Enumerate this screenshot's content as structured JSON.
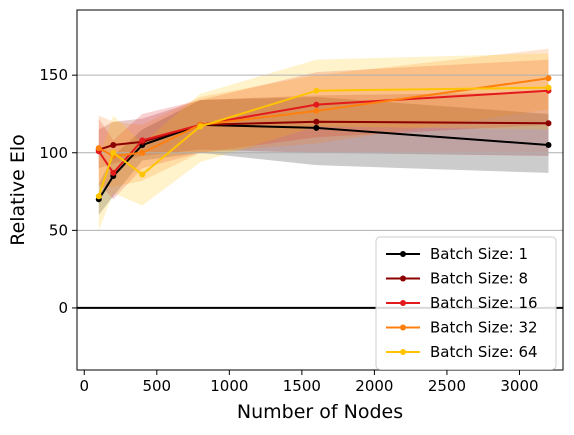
{
  "chart_data": {
    "type": "line",
    "xlabel": "Number of Nodes",
    "ylabel": "Relative Elo",
    "xlim": [
      -50,
      3300
    ],
    "ylim": [
      -40,
      192
    ],
    "xticks": [
      0,
      500,
      1000,
      1500,
      2000,
      2500,
      3000
    ],
    "yticks": [
      0,
      50,
      100,
      150
    ],
    "grid": "horizontal",
    "reference_line_y": 0,
    "legend_position": "lower-right",
    "x": [
      100,
      200,
      400,
      800,
      1600,
      3200
    ],
    "series": [
      {
        "name": "Batch Size: 1",
        "color": "#000000",
        "values": [
          70,
          85,
          105,
          118,
          116,
          105
        ],
        "band_lower": [
          60,
          72,
          95,
          100,
          92,
          87
        ],
        "band_upper": [
          80,
          98,
          115,
          134,
          136,
          125
        ]
      },
      {
        "name": "Batch Size: 8",
        "color": "#8b0000",
        "values": [
          102,
          105,
          107,
          118,
          120,
          119
        ],
        "band_lower": [
          90,
          93,
          98,
          102,
          100,
          98
        ],
        "band_upper": [
          115,
          120,
          122,
          134,
          137,
          139
        ]
      },
      {
        "name": "Batch Size: 16",
        "color": "#e31a1c",
        "values": [
          101,
          87,
          108,
          118,
          131,
          140
        ],
        "band_lower": [
          80,
          70,
          90,
          100,
          110,
          118
        ],
        "band_upper": [
          122,
          108,
          125,
          134,
          152,
          160
        ]
      },
      {
        "name": "Batch Size: 32",
        "color": "#ff7f0e",
        "values": [
          103,
          98,
          100,
          118,
          127,
          148
        ],
        "band_lower": [
          78,
          78,
          82,
          100,
          106,
          128
        ],
        "band_upper": [
          124,
          120,
          118,
          136,
          150,
          167
        ]
      },
      {
        "name": "Batch Size: 64",
        "color": "#ffc400",
        "values": [
          72,
          100,
          86,
          117,
          140,
          142
        ],
        "band_lower": [
          50,
          74,
          66,
          94,
          117,
          115
        ],
        "band_upper": [
          96,
          124,
          106,
          138,
          160,
          164
        ]
      }
    ]
  }
}
